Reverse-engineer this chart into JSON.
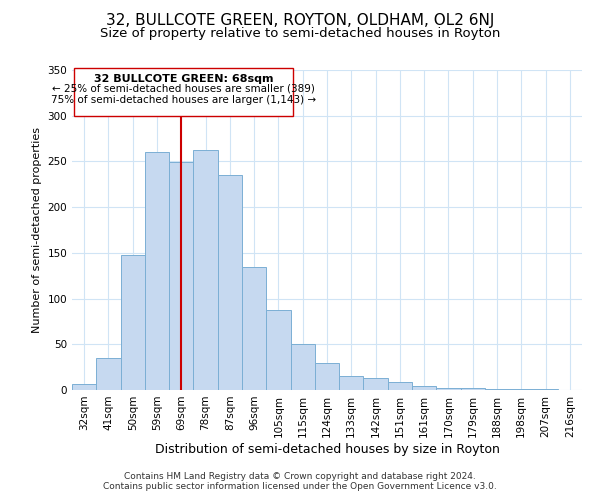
{
  "title": "32, BULLCOTE GREEN, ROYTON, OLDHAM, OL2 6NJ",
  "subtitle": "Size of property relative to semi-detached houses in Royton",
  "xlabel": "Distribution of semi-detached houses by size in Royton",
  "ylabel": "Number of semi-detached properties",
  "bar_labels": [
    "32sqm",
    "41sqm",
    "50sqm",
    "59sqm",
    "69sqm",
    "78sqm",
    "87sqm",
    "96sqm",
    "105sqm",
    "115sqm",
    "124sqm",
    "133sqm",
    "142sqm",
    "151sqm",
    "161sqm",
    "170sqm",
    "179sqm",
    "188sqm",
    "198sqm",
    "207sqm",
    "216sqm"
  ],
  "bar_values": [
    7,
    35,
    148,
    260,
    249,
    262,
    235,
    134,
    88,
    50,
    30,
    15,
    13,
    9,
    4,
    2,
    2,
    1,
    1,
    1,
    0
  ],
  "bar_color": "#c6d9f0",
  "bar_edge_color": "#7bafd4",
  "highlight_index": 4,
  "highlight_line_color": "#cc0000",
  "annotation_text_line1": "32 BULLCOTE GREEN: 68sqm",
  "annotation_text_line2": "← 25% of semi-detached houses are smaller (389)",
  "annotation_text_line3": "75% of semi-detached houses are larger (1,143) →",
  "box_edge_color": "#cc0000",
  "ylim": [
    0,
    350
  ],
  "yticks": [
    0,
    50,
    100,
    150,
    200,
    250,
    300,
    350
  ],
  "footnote1": "Contains HM Land Registry data © Crown copyright and database right 2024.",
  "footnote2": "Contains public sector information licensed under the Open Government Licence v3.0.",
  "title_fontsize": 11,
  "subtitle_fontsize": 9.5,
  "xlabel_fontsize": 9,
  "ylabel_fontsize": 8,
  "tick_fontsize": 7.5,
  "annotation_fontsize_bold": 8,
  "annotation_fontsize": 7.5,
  "footnote_fontsize": 6.5
}
